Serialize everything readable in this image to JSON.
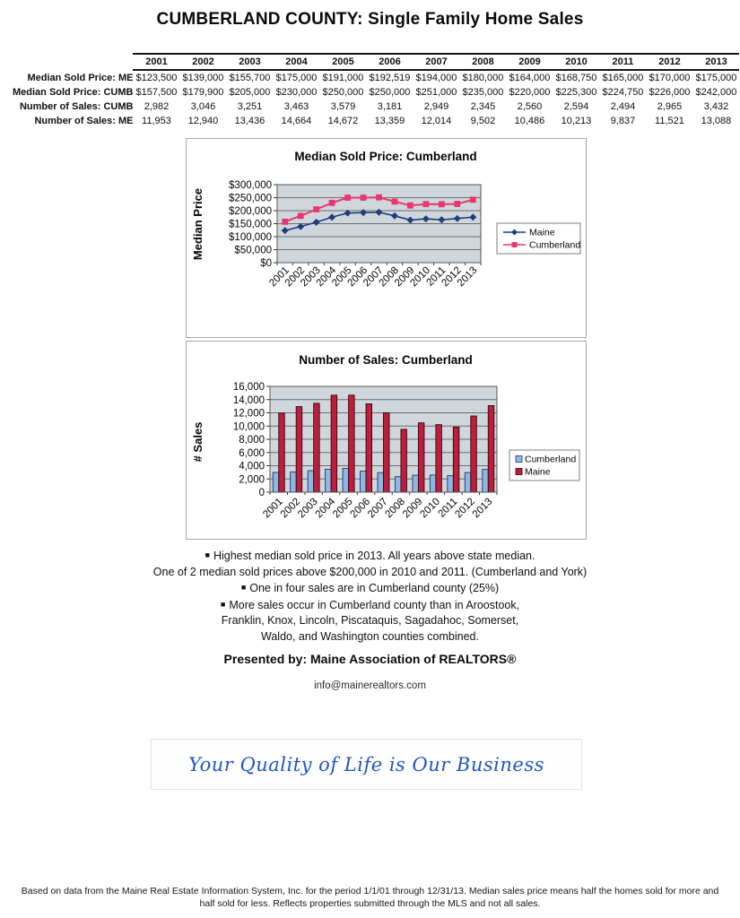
{
  "page_title": "CUMBERLAND COUNTY: Single Family Home Sales",
  "table": {
    "years": [
      "2001",
      "2002",
      "2003",
      "2004",
      "2005",
      "2006",
      "2007",
      "2008",
      "2009",
      "2010",
      "2011",
      "2012",
      "2013"
    ],
    "rows": [
      {
        "label": "Median Sold Price: ME",
        "values": [
          "$123,500",
          "$139,000",
          "$155,700",
          "$175,000",
          "$191,000",
          "$192,519",
          "$194,000",
          "$180,000",
          "$164,000",
          "$168,750",
          "$165,000",
          "$170,000",
          "$175,000"
        ]
      },
      {
        "label": "Median Sold Price: CUMB",
        "values": [
          "$157,500",
          "$179,900",
          "$205,000",
          "$230,000",
          "$250,000",
          "$250,000",
          "$251,000",
          "$235,000",
          "$220,000",
          "$225,300",
          "$224,750",
          "$226,000",
          "$242,000"
        ]
      },
      {
        "label": "Number of Sales: CUMB",
        "values": [
          "2,982",
          "3,046",
          "3,251",
          "3,463",
          "3,579",
          "3,181",
          "2,949",
          "2,345",
          "2,560",
          "2,594",
          "2,494",
          "2,965",
          "3,432"
        ]
      },
      {
        "label": "Number of Sales: ME",
        "values": [
          "11,953",
          "12,940",
          "13,436",
          "14,664",
          "14,672",
          "13,359",
          "12,014",
          "9,502",
          "10,486",
          "10,213",
          "9,837",
          "11,521",
          "13,088"
        ]
      }
    ]
  },
  "chart_data": [
    {
      "type": "line",
      "title": "Median Sold Price: Cumberland",
      "ylabel": "Median Price",
      "xlabel": "",
      "categories": [
        "2001",
        "2002",
        "2003",
        "2004",
        "2005",
        "2006",
        "2007",
        "2008",
        "2009",
        "2010",
        "2011",
        "2012",
        "2013"
      ],
      "series": [
        {
          "name": "Maine",
          "marker": "diamond",
          "color": "#1f3e7c",
          "values": [
            123500,
            139000,
            155700,
            175000,
            191000,
            192519,
            194000,
            180000,
            164000,
            168750,
            165000,
            170000,
            175000
          ]
        },
        {
          "name": "Cumberland",
          "marker": "square",
          "color": "#e8376e",
          "values": [
            157500,
            179900,
            205000,
            230000,
            250000,
            250000,
            251000,
            235000,
            220000,
            225300,
            224750,
            226000,
            242000
          ]
        }
      ],
      "ylim": [
        0,
        300000
      ],
      "ytick_step": 50000,
      "yformat": "currency",
      "grid": true,
      "legend_position": "right",
      "plot_bg": "#cfd7dd"
    },
    {
      "type": "bar",
      "title": "Number of Sales: Cumberland",
      "ylabel": "# Sales",
      "xlabel": "",
      "categories": [
        "2001",
        "2002",
        "2003",
        "2004",
        "2005",
        "2006",
        "2007",
        "2008",
        "2009",
        "2010",
        "2011",
        "2012",
        "2013"
      ],
      "series": [
        {
          "name": "Cumberland",
          "color": "#8fb7e4",
          "border": "#17375e",
          "values": [
            2982,
            3046,
            3251,
            3463,
            3579,
            3181,
            2949,
            2345,
            2560,
            2594,
            2494,
            2965,
            3432
          ]
        },
        {
          "name": "Maine",
          "color": "#be1e3c",
          "border": "#30060f",
          "values": [
            11953,
            12940,
            13436,
            14664,
            14672,
            13359,
            12014,
            9502,
            10486,
            10213,
            9837,
            11521,
            13088
          ]
        }
      ],
      "ylim": [
        0,
        16000
      ],
      "ytick_step": 2000,
      "yformat": "number",
      "grid": true,
      "legend_position": "right",
      "plot_bg": "#cfd7dd"
    }
  ],
  "notes": [
    {
      "bullet": true,
      "text": "Highest median sold price in 2013.  All years above state median."
    },
    {
      "bullet": false,
      "text": "One of 2 median sold prices above $200,000 in 2010 and 2011. (Cumberland and York)"
    },
    {
      "bullet": true,
      "text": "One in four sales are in Cumberland county (25%)"
    },
    {
      "bullet": true,
      "text": "More sales occur in Cumberland county than in Aroostook,"
    },
    {
      "bullet": false,
      "text": "Franklin, Knox, Lincoln, Piscataquis, Sagadahoc, Somerset,"
    },
    {
      "bullet": false,
      "text": "Waldo, and Washington counties combined."
    }
  ],
  "presented_by": "Presented by:  Maine Association of REALTORS®",
  "email": "info@mainerealtors.com",
  "tagline": "Your Quality of Life is Our Business",
  "footer": "Based on data from the Maine Real Estate Information System, Inc. for the period 1/1/01 through 12/31/13. Median sales price means half the homes sold for more and half sold for less. Reflects properties submitted through the MLS and not all sales.",
  "colors": {
    "maine_line": "#1f3e7c",
    "cumberland_line": "#e8376e",
    "cumberland_bar": "#8fb7e4",
    "maine_bar": "#be1e3c",
    "plot_background": "#cfd7dd",
    "tagline_blue": "#1e56c8"
  }
}
